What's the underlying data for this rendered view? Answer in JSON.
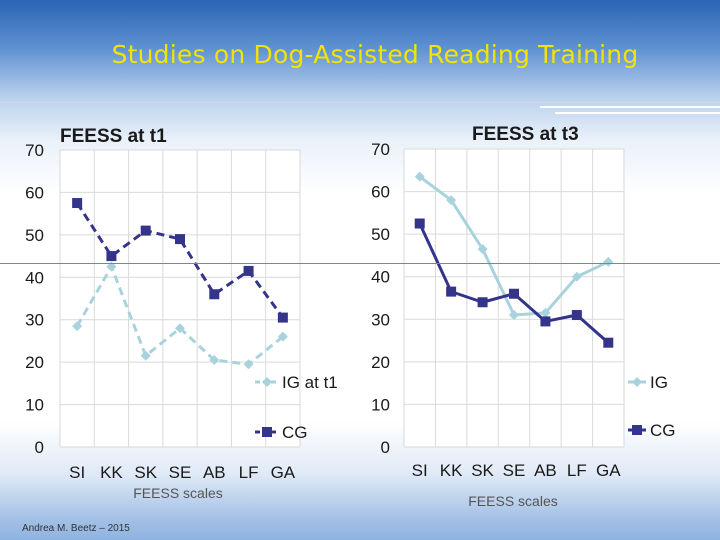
{
  "title": "Studies  on Dog-Assisted Reading Training",
  "footer": "Andrea M. Beetz – 2015",
  "colors": {
    "ig": "#a9d3dc",
    "cg": "#33348a",
    "title": "#f2e400"
  },
  "chart_data": [
    {
      "type": "line",
      "title": "FEESS at t1",
      "xlabel": "FEESS scales",
      "ylabel": "",
      "categories": [
        "SI",
        "KK",
        "SK",
        "SE",
        "AB",
        "LF",
        "GA"
      ],
      "ylim": [
        0,
        70
      ],
      "yticks": [
        0,
        10,
        20,
        30,
        40,
        50,
        60,
        70
      ],
      "line_style": "dashed",
      "legend_position": "right",
      "series": [
        {
          "name": "IG at t1",
          "marker": "diamond",
          "color": "#a9d3dc",
          "values": [
            28.5,
            42.5,
            21.5,
            28,
            20.5,
            19.5,
            26
          ]
        },
        {
          "name": "CG",
          "marker": "square",
          "color": "#33348a",
          "values": [
            57.5,
            45,
            51,
            49,
            36,
            41.5,
            30.5
          ]
        }
      ]
    },
    {
      "type": "line",
      "title": "FEESS  at t3",
      "xlabel": "FEESS scales",
      "ylabel": "",
      "categories": [
        "SI",
        "KK",
        "SK",
        "SE",
        "AB",
        "LF",
        "GA"
      ],
      "ylim": [
        0,
        70
      ],
      "yticks": [
        0,
        10,
        20,
        30,
        40,
        50,
        60,
        70
      ],
      "line_style": "solid",
      "legend_position": "right",
      "series": [
        {
          "name": "IG",
          "marker": "diamond",
          "color": "#a9d3dc",
          "values": [
            63.5,
            58,
            46.5,
            31,
            31.5,
            40,
            43.5
          ]
        },
        {
          "name": "CG",
          "marker": "square",
          "color": "#33348a",
          "values": [
            52.5,
            36.5,
            34,
            36,
            29.5,
            31,
            24.5
          ]
        }
      ]
    }
  ]
}
